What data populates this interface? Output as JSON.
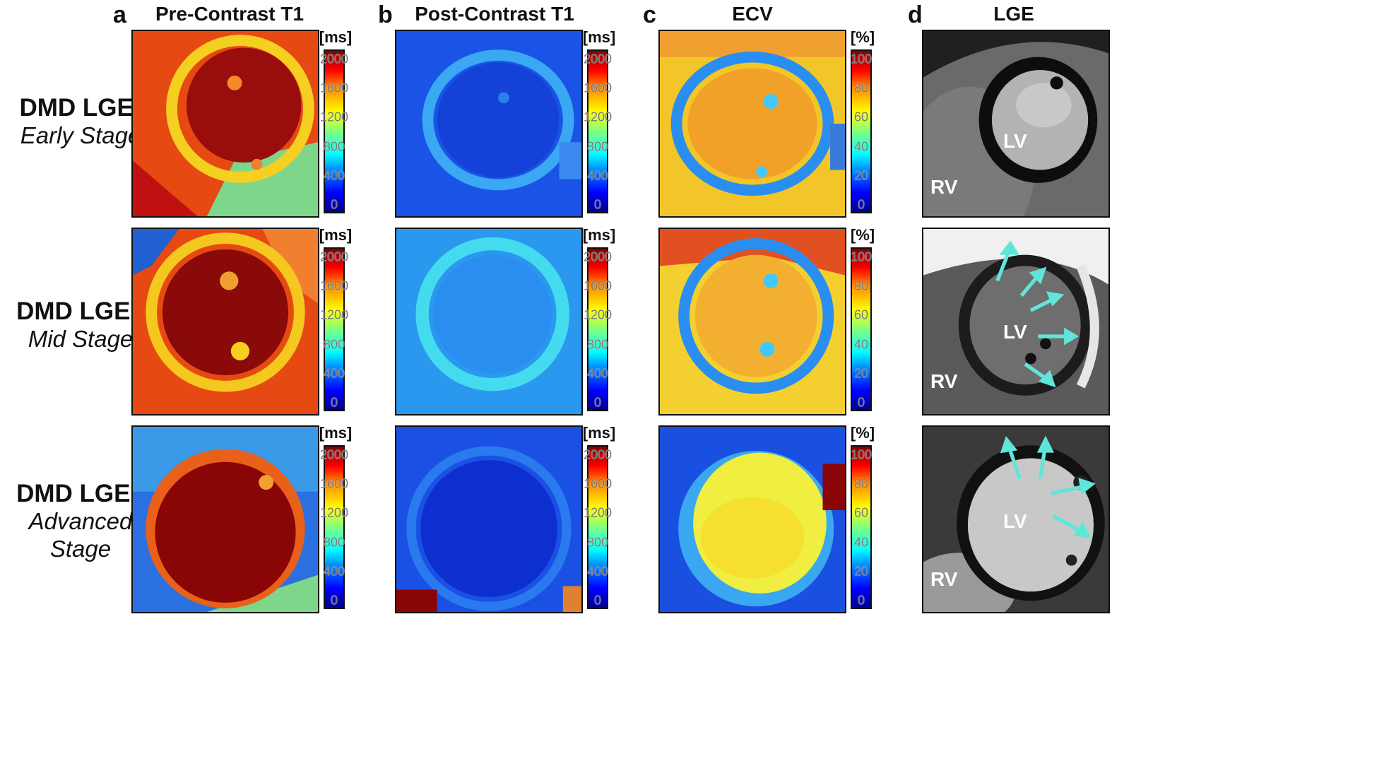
{
  "panels": [
    {
      "letter": "a",
      "title": "Pre-Contrast T1",
      "unit": "[ms]",
      "ticks": [
        "2000",
        "1600",
        "1200",
        "800",
        "400",
        "0"
      ]
    },
    {
      "letter": "b",
      "title": "Post-Contrast T1",
      "unit": "[ms]",
      "ticks": [
        "2000",
        "1600",
        "1200",
        "800",
        "400",
        "0"
      ]
    },
    {
      "letter": "c",
      "title": "ECV",
      "unit": "[%]",
      "ticks": [
        "100",
        "80",
        "60",
        "40",
        "20",
        "0"
      ]
    },
    {
      "letter": "d",
      "title": "LGE"
    }
  ],
  "rows": [
    {
      "title": "DMD LGE-",
      "stage": [
        "Early Stage"
      ]
    },
    {
      "title": "DMD LGE+",
      "stage": [
        "Mid Stage"
      ]
    },
    {
      "title": "DMD LGE+",
      "stage": [
        "Advanced",
        "Stage"
      ]
    }
  ],
  "chambers": {
    "lv": "LV",
    "rv": "RV"
  },
  "colors": {
    "arrow": "#5fe6d8",
    "colormap": "jet"
  }
}
